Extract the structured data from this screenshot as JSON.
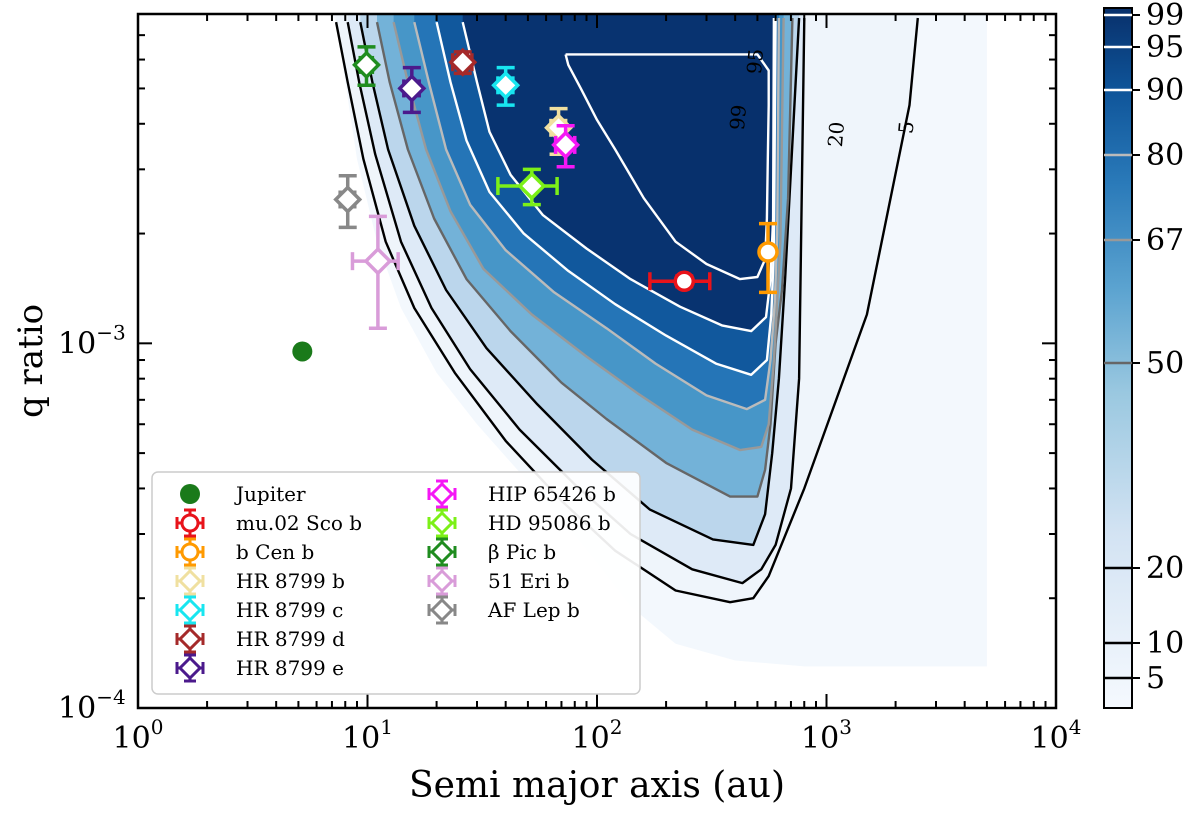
{
  "chart_data": {
    "type": "scatter",
    "xlabel": "Semi major axis (au)",
    "ylabel": "q ratio",
    "xscale": "log",
    "yscale": "log",
    "xlim": [
      1,
      10000
    ],
    "ylim": [
      0.0001,
      0.008
    ],
    "x_tick_labels": [
      "10^0",
      "10^1",
      "10^2",
      "10^3",
      "10^4"
    ],
    "y_tick_labels": [
      "10^-4",
      "10^-3"
    ],
    "legend_position": "lower-left",
    "legend_columns": 2,
    "background": "detection probability map (blues colormap) with contours",
    "contour_labels": [
      "99",
      "95",
      "20",
      "5"
    ],
    "colorbar": {
      "ticks": [
        "5",
        "10",
        "20",
        "50",
        "67",
        "80",
        "90",
        "95",
        "99"
      ],
      "colormap": "Blues"
    },
    "contours": [
      {
        "level": 5,
        "color": "#000000",
        "points": [
          [
            7.3,
            0.0076
          ],
          [
            8.2,
            0.0052
          ],
          [
            9.6,
            0.0032
          ],
          [
            12,
            0.0019
          ],
          [
            16,
            0.00125
          ],
          [
            24,
            0.00083
          ],
          [
            40,
            0.00054
          ],
          [
            70,
            0.00037
          ],
          [
            120,
            0.00027
          ],
          [
            220,
            0.00021
          ],
          [
            380,
            0.000195
          ],
          [
            480,
            0.0002
          ],
          [
            560,
            0.00023
          ],
          [
            800,
            0.0004
          ],
          [
            1500,
            0.0012
          ],
          [
            2300,
            0.0045
          ],
          [
            2500,
            0.0078
          ]
        ]
      },
      {
        "level": 10,
        "color": "#000000",
        "points": [
          [
            8.2,
            0.0076
          ],
          [
            9.2,
            0.0052
          ],
          [
            10.8,
            0.0033
          ],
          [
            14,
            0.0019
          ],
          [
            19,
            0.00125
          ],
          [
            28,
            0.00085
          ],
          [
            46,
            0.00058
          ],
          [
            80,
            0.00041
          ],
          [
            140,
            0.0003
          ],
          [
            260,
            0.00024
          ],
          [
            430,
            0.00022
          ],
          [
            520,
            0.00024
          ],
          [
            600,
            0.00028
          ],
          [
            700,
            0.0004
          ],
          [
            760,
            0.0008
          ],
          [
            800,
            0.0078
          ]
        ]
      },
      {
        "level": 20,
        "color": "#000000",
        "points": [
          [
            9.3,
            0.0076
          ],
          [
            10.5,
            0.0052
          ],
          [
            12.3,
            0.0034
          ],
          [
            16,
            0.0021
          ],
          [
            22,
            0.0014
          ],
          [
            33,
            0.00097
          ],
          [
            55,
            0.00068
          ],
          [
            95,
            0.00048
          ],
          [
            170,
            0.00035
          ],
          [
            320,
            0.00029
          ],
          [
            480,
            0.00028
          ],
          [
            540,
            0.00034
          ],
          [
            580,
            0.0005
          ],
          [
            620,
            0.0008
          ],
          [
            660,
            0.0015
          ],
          [
            700,
            0.003
          ],
          [
            760,
            0.0078
          ]
        ]
      },
      {
        "level": 50,
        "color": "#666666",
        "points": [
          [
            11,
            0.0076
          ],
          [
            12.5,
            0.0052
          ],
          [
            15,
            0.0034
          ],
          [
            19.5,
            0.0022
          ],
          [
            27,
            0.0015
          ],
          [
            42,
            0.00108
          ],
          [
            70,
            0.00078
          ],
          [
            110,
            0.00062
          ],
          [
            200,
            0.00047
          ],
          [
            380,
            0.00038
          ],
          [
            500,
            0.00038
          ],
          [
            540,
            0.00045
          ],
          [
            570,
            0.0006
          ],
          [
            600,
            0.001
          ],
          [
            640,
            0.0014
          ],
          [
            680,
            0.0025
          ],
          [
            710,
            0.0078
          ]
        ]
      },
      {
        "level": 67,
        "color": "#999999",
        "points": [
          [
            13,
            0.0076
          ],
          [
            15,
            0.0052
          ],
          [
            18,
            0.0034
          ],
          [
            23,
            0.0023
          ],
          [
            32,
            0.0016
          ],
          [
            52,
            0.0012
          ],
          [
            90,
            0.00092
          ],
          [
            150,
            0.00073
          ],
          [
            260,
            0.00058
          ],
          [
            420,
            0.00051
          ],
          [
            520,
            0.00052
          ],
          [
            560,
            0.0006
          ],
          [
            590,
            0.0009
          ],
          [
            610,
            0.0013
          ],
          [
            630,
            0.0019
          ],
          [
            650,
            0.0078
          ]
        ]
      },
      {
        "level": 80,
        "color": "#bbbbbb",
        "points": [
          [
            16,
            0.0076
          ],
          [
            18.5,
            0.0052
          ],
          [
            22,
            0.0034
          ],
          [
            28,
            0.0024
          ],
          [
            40,
            0.0018
          ],
          [
            65,
            0.00138
          ],
          [
            110,
            0.0011
          ],
          [
            180,
            0.00088
          ],
          [
            300,
            0.00072
          ],
          [
            450,
            0.00066
          ],
          [
            540,
            0.0007
          ],
          [
            570,
            0.0009
          ],
          [
            595,
            0.0013
          ],
          [
            610,
            0.002
          ],
          [
            620,
            0.0078
          ]
        ]
      },
      {
        "level": 90,
        "color": "#ffffff",
        "points": [
          [
            20,
            0.0076
          ],
          [
            23,
            0.0052
          ],
          [
            27,
            0.0036
          ],
          [
            34,
            0.0026
          ],
          [
            48,
            0.002
          ],
          [
            75,
            0.00158
          ],
          [
            120,
            0.00128
          ],
          [
            200,
            0.00105
          ],
          [
            330,
            0.00088
          ],
          [
            470,
            0.00082
          ],
          [
            550,
            0.0009
          ],
          [
            575,
            0.0012
          ],
          [
            590,
            0.0018
          ],
          [
            600,
            0.0078
          ]
        ]
      },
      {
        "level": 95,
        "color": "#ffffff",
        "points": [
          [
            26,
            0.0076
          ],
          [
            30,
            0.0052
          ],
          [
            34,
            0.0038
          ],
          [
            42,
            0.0029
          ],
          [
            58,
            0.00225
          ],
          [
            90,
            0.00182
          ],
          [
            140,
            0.0015
          ],
          [
            230,
            0.00126
          ],
          [
            350,
            0.00112
          ],
          [
            470,
            0.00108
          ],
          [
            545,
            0.00118
          ],
          [
            570,
            0.0015
          ],
          [
            585,
            0.0022
          ],
          [
            590,
            0.0078
          ]
        ]
      },
      {
        "level": 99,
        "color": "#ffffff",
        "points": [
          [
            73,
            0.0062
          ],
          [
            90,
            0.0062
          ],
          [
            140,
            0.0062
          ],
          [
            250,
            0.0062
          ],
          [
            400,
            0.0062
          ],
          [
            500,
            0.0062
          ],
          [
            560,
            0.0056
          ],
          [
            560,
            0.0045
          ],
          [
            555,
            0.0032
          ],
          [
            550,
            0.0022
          ],
          [
            540,
            0.0017
          ],
          [
            500,
            0.00152
          ],
          [
            420,
            0.0015
          ],
          [
            300,
            0.00165
          ],
          [
            220,
            0.0019
          ],
          [
            160,
            0.0025
          ],
          [
            120,
            0.0034
          ],
          [
            100,
            0.0041
          ],
          [
            85,
            0.005
          ],
          [
            75,
            0.0058
          ],
          [
            73,
            0.0062
          ]
        ]
      }
    ],
    "series": [
      {
        "name": "Jupiter",
        "color": "#1a7a1a",
        "marker": "circle-filled",
        "x": 5.2,
        "y": 0.00095
      },
      {
        "name": "mu.02 Sco b",
        "color": "#e8131a",
        "marker": "circle",
        "x": 240,
        "y": 0.00148,
        "xerr": [
          70,
          70
        ],
        "yerr": [
          5e-05,
          5e-05
        ]
      },
      {
        "name": "b Cen b",
        "color": "#ff9a00",
        "marker": "circle",
        "x": 556,
        "y": 0.00178,
        "xerr": [
          18,
          18
        ],
        "yerr": [
          0.0004,
          0.00035
        ]
      },
      {
        "name": "HR 8799 b",
        "color": "#f0e0a0",
        "marker": "diamond",
        "x": 68,
        "y": 0.0039,
        "xerr": [
          5,
          5
        ],
        "yerr": [
          0.0006,
          0.0005
        ]
      },
      {
        "name": "HR 8799 c",
        "color": "#18e6f0",
        "marker": "diamond",
        "x": 40,
        "y": 0.0051,
        "xerr": [
          3,
          3
        ],
        "yerr": [
          0.0006,
          0.0006
        ]
      },
      {
        "name": "HR 8799 d",
        "color": "#a52a2a",
        "marker": "diamond",
        "x": 26,
        "y": 0.0059,
        "xerr": [
          2.5,
          2.5
        ],
        "yerr": [
          0.0004,
          0.0004
        ]
      },
      {
        "name": "HR 8799 e",
        "color": "#4b1a8c",
        "marker": "diamond",
        "x": 15.6,
        "y": 0.005,
        "xerr": [
          1.2,
          1.2
        ],
        "yerr": [
          0.0007,
          0.0007
        ]
      },
      {
        "name": "HIP 65426 b",
        "color": "#f517f5",
        "marker": "diamond",
        "x": 73,
        "y": 0.0035,
        "xerr": [
          7,
          7
        ],
        "yerr": [
          0.00045,
          0.00045
        ]
      },
      {
        "name": "HD 95086 b",
        "color": "#7cf018",
        "marker": "diamond",
        "x": 52,
        "y": 0.0027,
        "xerr": [
          15,
          15
        ],
        "yerr": [
          0.0003,
          0.0003
        ]
      },
      {
        "name": "β Pic b",
        "color": "#1f8c1f",
        "marker": "diamond",
        "x": 9.9,
        "y": 0.0058,
        "xerr": [
          0.6,
          0.6
        ],
        "yerr": [
          0.0007,
          0.0007
        ]
      },
      {
        "name": "51 Eri b",
        "color": "#d99cd9",
        "marker": "diamond",
        "x": 11.1,
        "y": 0.00168,
        "xerr": [
          2.5,
          2.5
        ],
        "yerr": [
          0.00058,
          0.00055
        ]
      },
      {
        "name": "AF Lep b",
        "color": "#888888",
        "marker": "diamond",
        "x": 8.2,
        "y": 0.00248,
        "xerr": [
          0.6,
          0.6
        ],
        "yerr": [
          0.0004,
          0.0004
        ]
      }
    ]
  }
}
